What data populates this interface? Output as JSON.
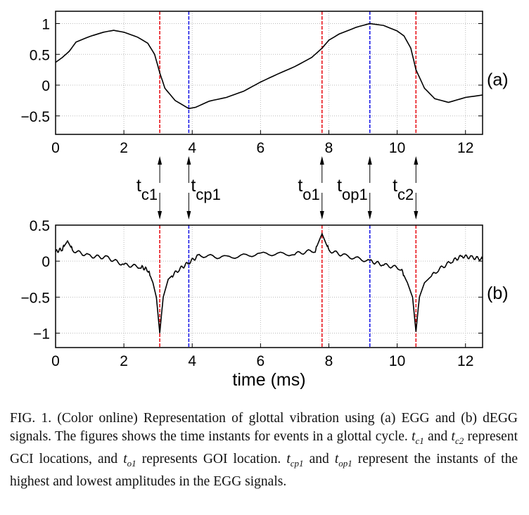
{
  "chart_data": [
    {
      "type": "line",
      "panel_label": "(a)",
      "xlim": [
        0,
        12.5
      ],
      "ylim": [
        -0.8,
        1.2
      ],
      "xticks": [
        "0",
        "2",
        "4",
        "6",
        "8",
        "10",
        "12"
      ],
      "yticks": [
        "1",
        "0.5",
        "0",
        "−0.5"
      ],
      "grid": true,
      "x": [
        0,
        0.2,
        0.4,
        0.6,
        1,
        1.4,
        1.7,
        2,
        2.4,
        2.7,
        2.9,
        3.05,
        3.2,
        3.5,
        3.9,
        4.1,
        4.5,
        5,
        5.5,
        6,
        6.5,
        7,
        7.5,
        7.8,
        8,
        8.3,
        8.8,
        9.2,
        9.6,
        10,
        10.2,
        10.4,
        10.55,
        10.8,
        11.1,
        11.5,
        12,
        12.5
      ],
      "y": [
        0.37,
        0.45,
        0.55,
        0.7,
        0.79,
        0.86,
        0.89,
        0.86,
        0.78,
        0.68,
        0.5,
        0.2,
        -0.05,
        -0.25,
        -0.38,
        -0.36,
        -0.26,
        -0.2,
        -0.1,
        0.05,
        0.18,
        0.3,
        0.45,
        0.6,
        0.73,
        0.83,
        0.94,
        1.0,
        0.97,
        0.88,
        0.8,
        0.6,
        0.25,
        -0.05,
        -0.22,
        -0.28,
        -0.2,
        -0.16
      ]
    },
    {
      "type": "line",
      "panel_label": "(b)",
      "xlim": [
        0,
        12.5
      ],
      "ylim": [
        -1.2,
        0.5
      ],
      "xlabel": "time (ms)",
      "xticks": [
        "0",
        "2",
        "4",
        "6",
        "8",
        "10",
        "12"
      ],
      "yticks": [
        "0.5",
        "0",
        "−0.5",
        "−1"
      ],
      "grid": true,
      "x": [
        0,
        0.2,
        0.35,
        0.5,
        1,
        1.5,
        2,
        2.5,
        2.7,
        2.85,
        2.95,
        3.05,
        3.15,
        3.3,
        3.6,
        3.9,
        4.2,
        5,
        6,
        7,
        7.6,
        7.8,
        8,
        8.5,
        9.2,
        9.6,
        10.1,
        10.3,
        10.45,
        10.55,
        10.65,
        10.8,
        11.2,
        11.6,
        11.9,
        12.2,
        12.5
      ],
      "y": [
        0.13,
        0.17,
        0.28,
        0.15,
        0.07,
        0.05,
        -0.05,
        -0.08,
        -0.12,
        -0.3,
        -0.5,
        -1.0,
        -0.5,
        -0.25,
        -0.12,
        -0.02,
        0.08,
        0.05,
        0.1,
        0.1,
        0.15,
        0.38,
        0.15,
        0.07,
        0.0,
        -0.05,
        -0.1,
        -0.3,
        -0.5,
        -0.98,
        -0.5,
        -0.3,
        -0.12,
        0.0,
        0.07,
        0.05,
        0.03
      ]
    }
  ],
  "events": [
    {
      "t": "t",
      "sub": "c1",
      "x": 3.05,
      "color": "#e8141c",
      "side": "left"
    },
    {
      "t": "t",
      "sub": "cp1",
      "x": 3.9,
      "color": "#1a1ae6",
      "side": "right"
    },
    {
      "t": "t",
      "sub": "o1",
      "x": 7.8,
      "color": "#e8141c",
      "side": "left"
    },
    {
      "t": "t",
      "sub": "op1",
      "x": 9.2,
      "color": "#1a1ae6",
      "side": "left"
    },
    {
      "t": "t",
      "sub": "c2",
      "x": 10.55,
      "color": "#e8141c",
      "side": "left"
    }
  ],
  "caption": {
    "p1": "FIG. 1. (Color online) Representation of glottal vibration using (a) EGG and (b) dEGG signals. The figures shows the time instants for events in a glottal cycle. ",
    "p2": " and ",
    "p3": " represent GCI locations, and ",
    "p4": " represents GOI location. ",
    "p5": " and ",
    "p6": " represent the instants of the highest and lowest amplitudes in the EGG signals.",
    "t": "t",
    "s_c1": "c1",
    "s_c2": "c2",
    "s_o1": "o1",
    "s_cp1": "cp1",
    "s_op1": "op1"
  }
}
